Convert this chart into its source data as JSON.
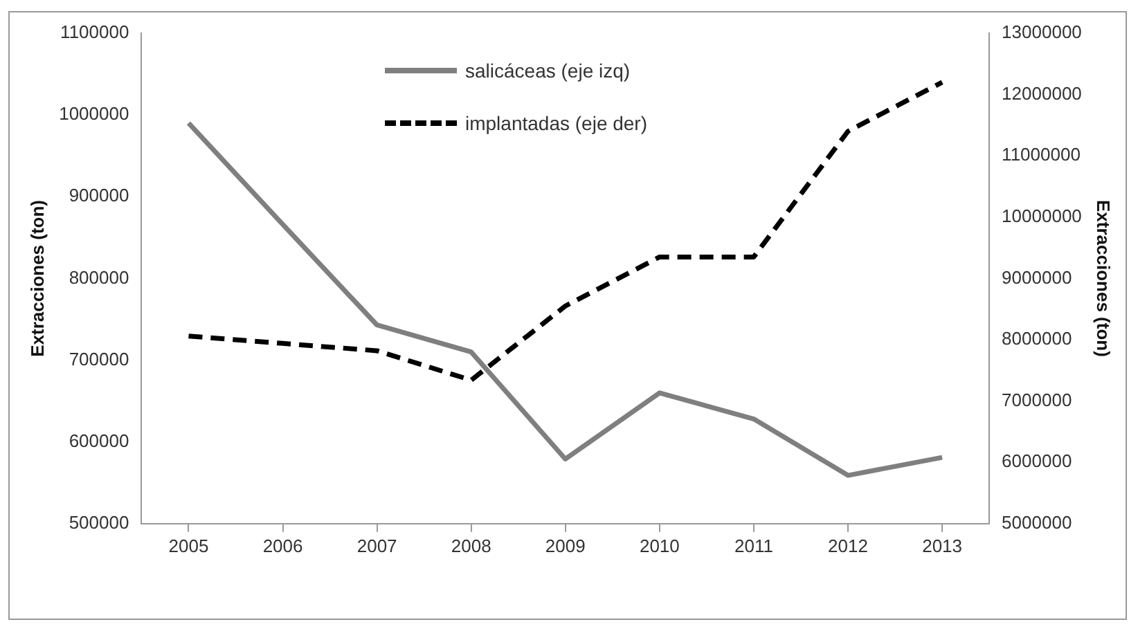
{
  "chart_data": {
    "type": "line",
    "categories": [
      "2005",
      "2006",
      "2007",
      "2008",
      "2009",
      "2010",
      "2011",
      "2012",
      "2013"
    ],
    "ylabel": "Extracciones (ton)",
    "y2label": "Extracciones (ton)",
    "ylim": [
      500000,
      1100000
    ],
    "yticks": [
      500000,
      600000,
      700000,
      800000,
      900000,
      1000000,
      1100000
    ],
    "y2lim": [
      5000000,
      13000000
    ],
    "y2ticks": [
      5000000,
      6000000,
      7000000,
      8000000,
      9000000,
      10000000,
      11000000,
      12000000,
      13000000
    ],
    "grid": false,
    "legend": "top",
    "marker": "none",
    "series": [
      {
        "name": "salicáceas (eje izq)",
        "color": "#7f7f7f",
        "line_style": "solid",
        "values": [
          990000,
          866000,
          743000,
          710000,
          579000,
          660000,
          628000,
          559000,
          581000
        ]
      },
      {
        "name": "implantadas (eje der)",
        "color": "#000000",
        "line_style": "dashed",
        "axis": "y2",
        "values": [
          8060000,
          7940000,
          7820000,
          7340000,
          8550000,
          9350000,
          9350000,
          11400000,
          12200000
        ]
      }
    ]
  }
}
